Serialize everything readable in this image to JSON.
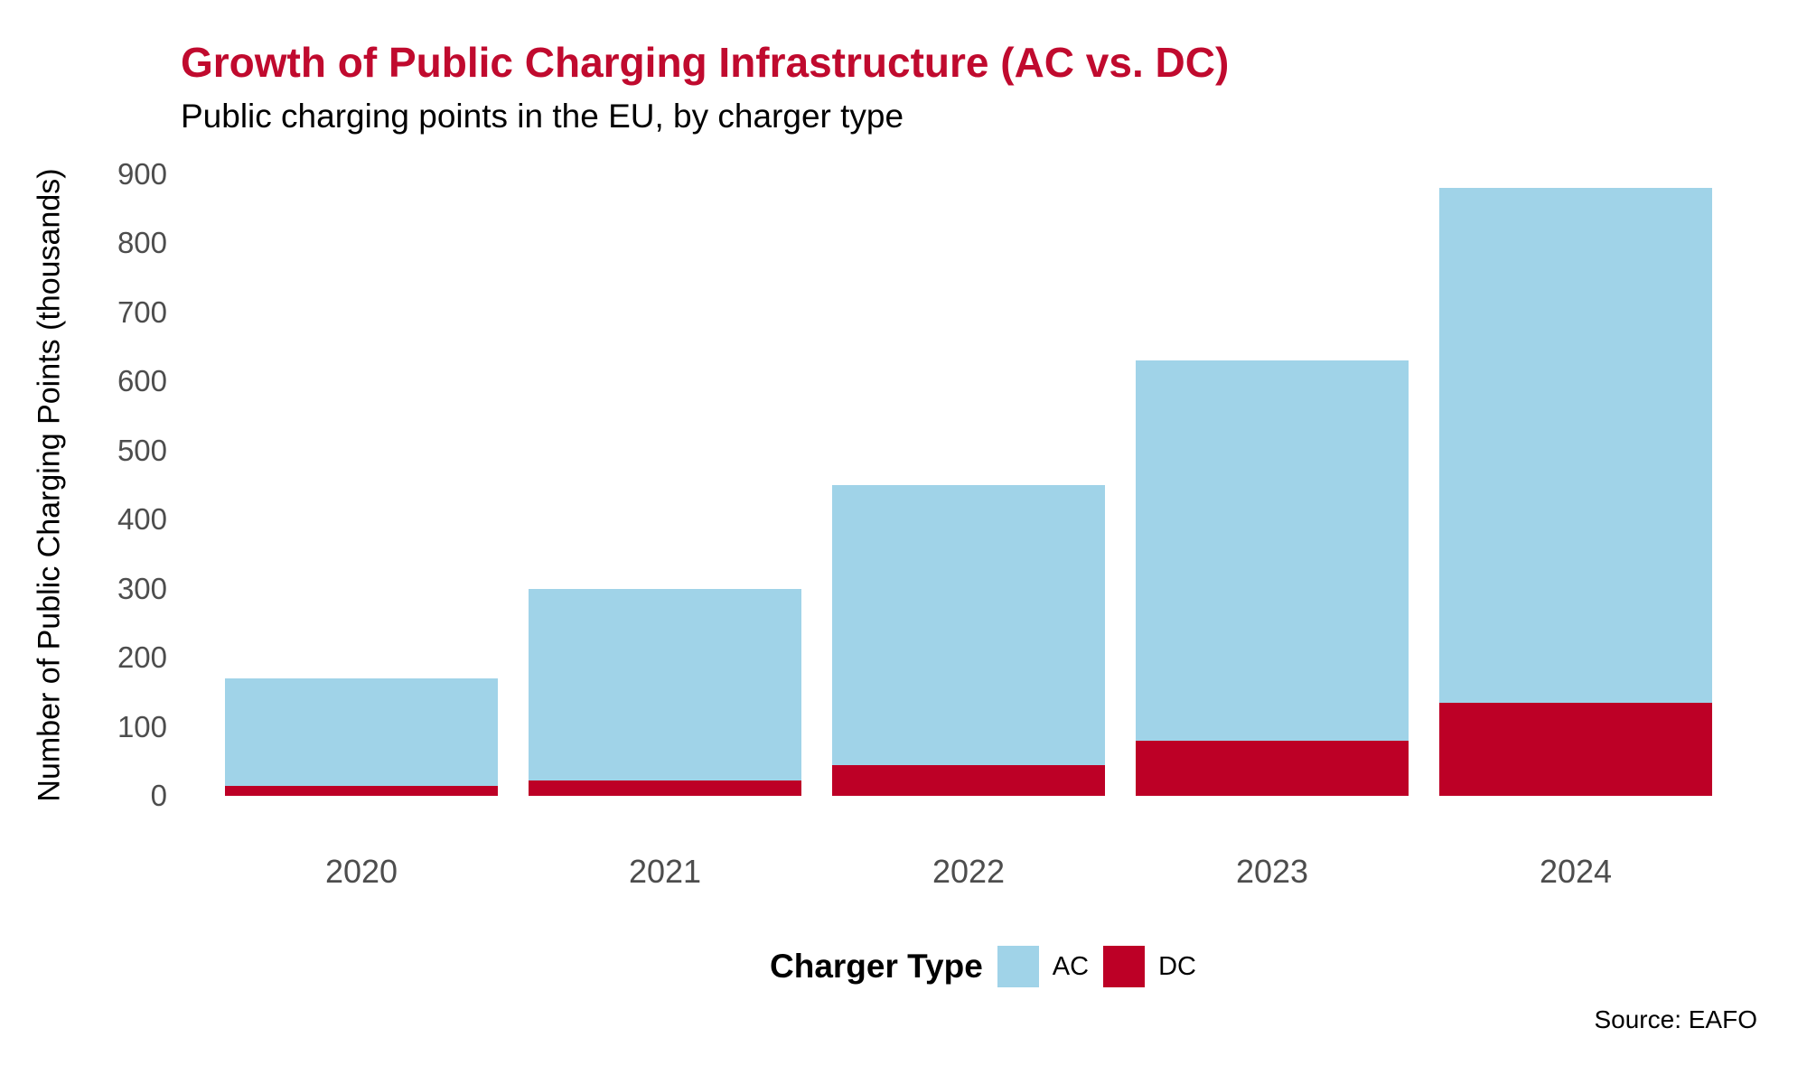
{
  "header": {
    "title": "Growth of Public Charging Infrastructure (AC vs. DC)",
    "subtitle": "Public charging points in the EU, by charger type"
  },
  "chart_data": {
    "type": "bar",
    "stacked": true,
    "title": "Growth of Public Charging Infrastructure (AC vs. DC)",
    "subtitle": "Public charging points in the EU, by charger type",
    "categories": [
      "2020",
      "2021",
      "2022",
      "2023",
      "2024"
    ],
    "series": [
      {
        "name": "AC",
        "color": "#A0D3E8",
        "values": [
          155,
          278,
          405,
          550,
          745
        ]
      },
      {
        "name": "DC",
        "color": "#BD0026",
        "values": [
          15,
          22,
          45,
          80,
          135
        ]
      }
    ],
    "stack_bottom_to_top": [
      "DC",
      "AC"
    ],
    "totals": [
      170,
      300,
      450,
      630,
      880
    ],
    "xlabel": "",
    "ylabel": "Number of Public Charging Points (thousands)",
    "ylim": [
      0,
      900
    ],
    "yticks": [
      0,
      100,
      200,
      300,
      400,
      500,
      600,
      700,
      800,
      900
    ],
    "grid": false,
    "legend_position": "bottom"
  },
  "legend": {
    "title": "Charger Type",
    "items": [
      {
        "label": "AC",
        "color": "#A0D3E8"
      },
      {
        "label": "DC",
        "color": "#BD0026"
      }
    ]
  },
  "source": {
    "label": "Source: EAFO"
  },
  "colors": {
    "title_accent": "#C00A2E",
    "axis_text": "#4D4D4D",
    "ac": "#A0D3E8",
    "dc": "#BD0026"
  }
}
